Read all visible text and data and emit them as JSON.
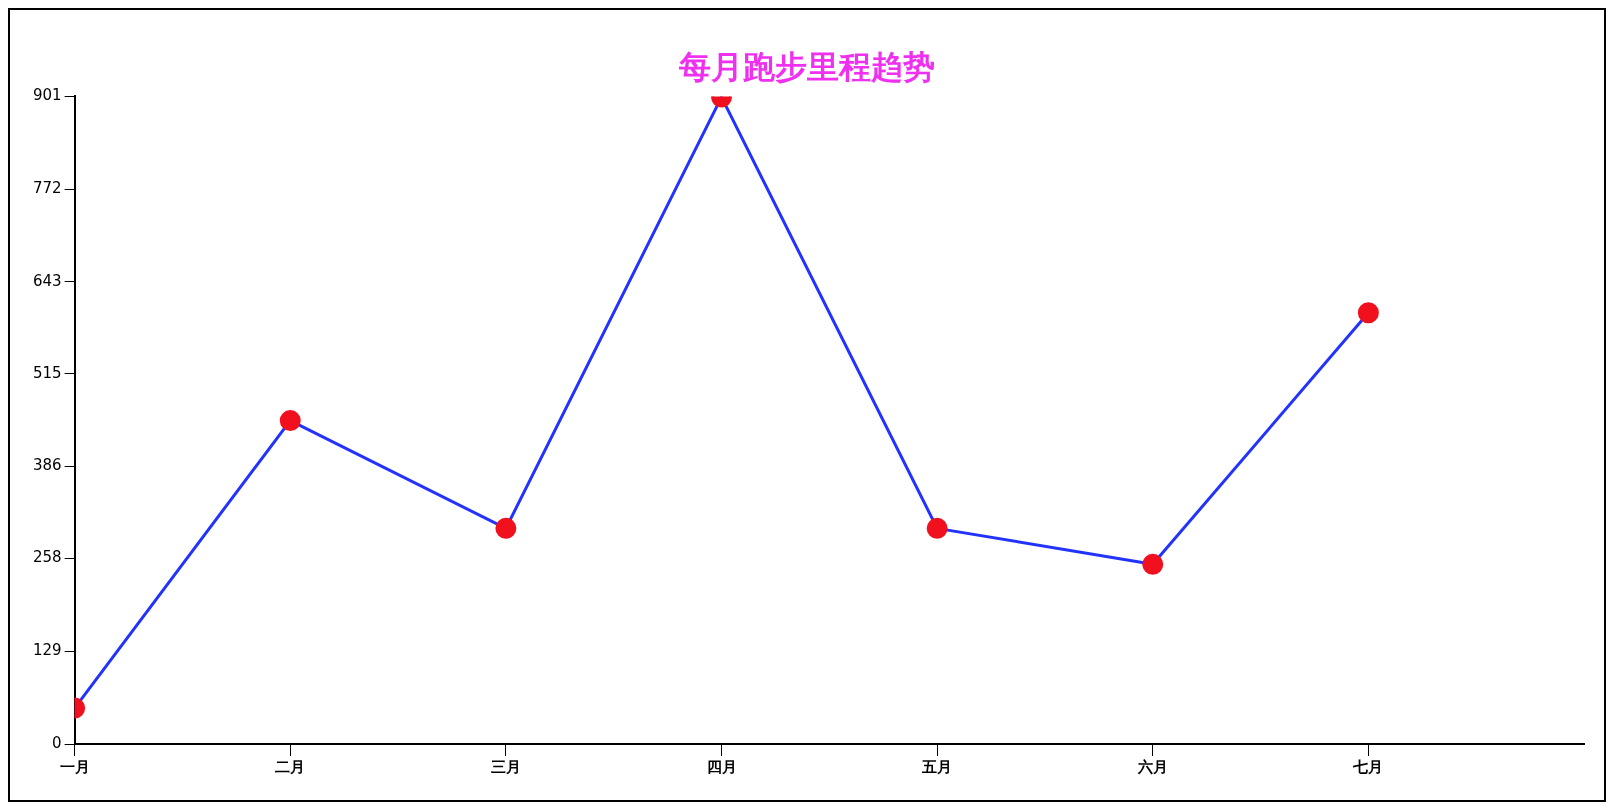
{
  "chart_data": {
    "type": "line",
    "title": "每月跑步里程趋势",
    "categories": [
      "一月",
      "二月",
      "三月",
      "四月",
      "五月",
      "六月",
      "七月"
    ],
    "series": [
      {
        "color": "#2233ff",
        "values": [
          50,
          450,
          300,
          900,
          300,
          250,
          600
        ]
      }
    ],
    "ylim": [
      0,
      901
    ],
    "yticks": [
      0,
      129,
      258,
      386,
      515,
      643,
      772,
      901
    ],
    "marker": "circle",
    "legend": false,
    "grid": false
  }
}
